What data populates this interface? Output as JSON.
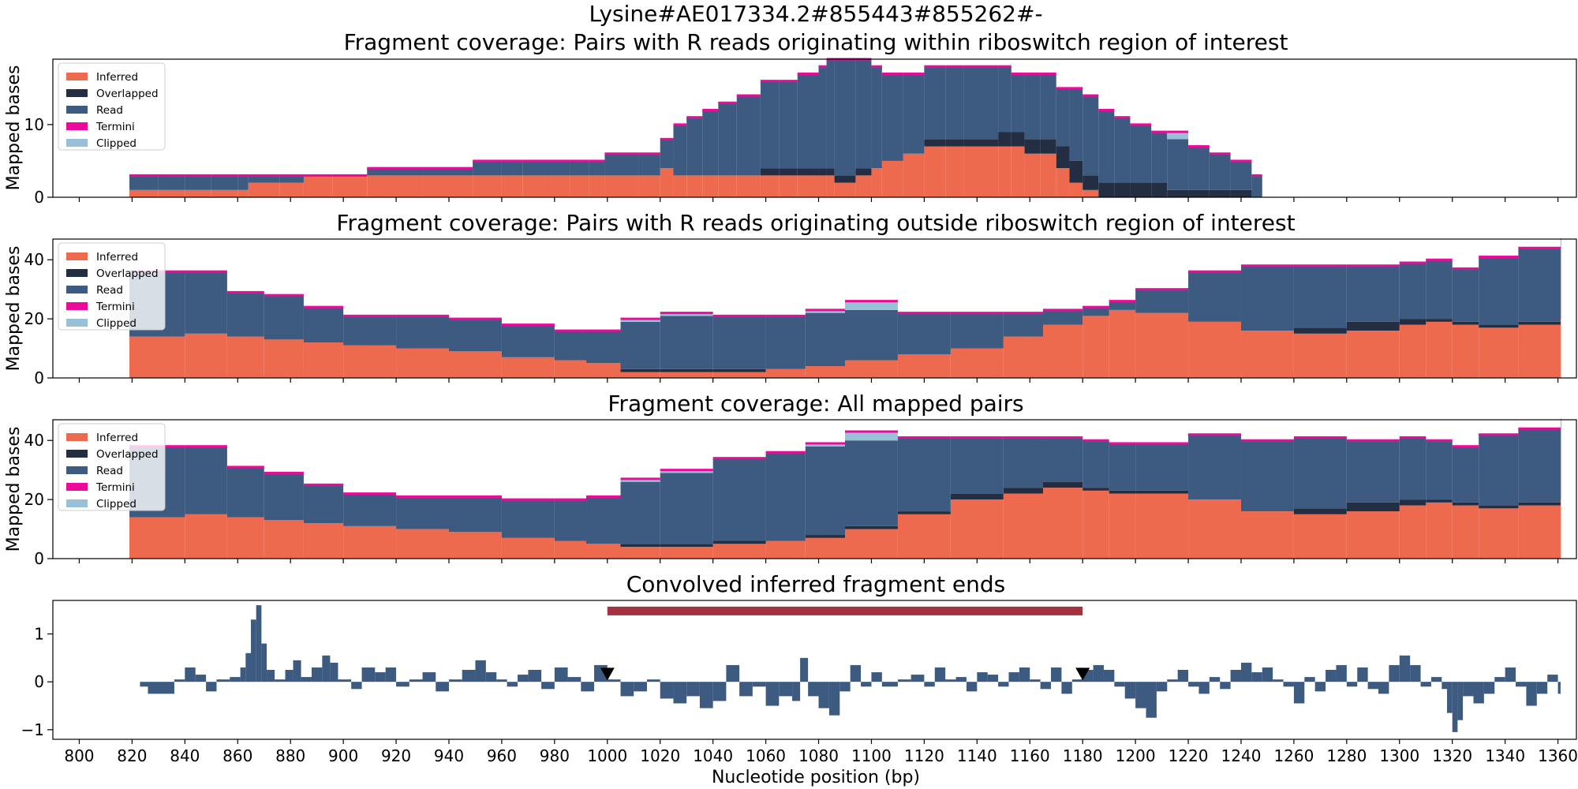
{
  "figure": {
    "suptitle": "Lysine#AE017334.2#855443#855262#-"
  },
  "colors": {
    "inferred": "#ee6a4e",
    "overlapped": "#242e42",
    "read": "#3d5a80",
    "termini": "#ec0a9b",
    "clipped": "#98c1d9",
    "roi_bar": "#a5303e",
    "conv_bar": "#3d5a80"
  },
  "legend": [
    "Inferred",
    "Overlapped",
    "Read",
    "Termini",
    "Clipped"
  ],
  "chart_data": [
    {
      "type": "area",
      "title": "Fragment coverage: Pairs with R reads originating within riboswitch region of interest",
      "ylabel": "Mapped bases",
      "ylim": [
        0,
        19
      ],
      "yticks": [
        0,
        10
      ],
      "xlim": [
        790,
        1367
      ],
      "legend_position": "top-left",
      "x": [
        819,
        830,
        840,
        850,
        860,
        864,
        876,
        885,
        896,
        909,
        930,
        949,
        960,
        968,
        976,
        986,
        993,
        999,
        1005,
        1012,
        1020,
        1025,
        1030,
        1036,
        1042,
        1049,
        1058,
        1065,
        1072,
        1080,
        1083,
        1086,
        1090,
        1094,
        1100,
        1104,
        1112,
        1120,
        1128,
        1135,
        1142,
        1148,
        1153,
        1158,
        1164,
        1170,
        1175,
        1180,
        1186,
        1192,
        1198,
        1206,
        1212,
        1220,
        1228,
        1236,
        1244,
        1248
      ],
      "series": [
        {
          "name": "Inferred",
          "values": [
            1,
            1,
            1,
            1,
            1,
            2,
            2,
            3,
            3,
            3,
            3,
            3,
            3,
            3,
            3,
            3,
            3,
            3,
            3,
            3,
            4,
            3,
            3,
            3,
            3,
            3,
            3,
            3,
            3,
            3,
            3,
            2,
            2,
            3,
            4,
            5,
            6,
            7,
            7,
            7,
            7,
            7,
            7,
            6,
            6,
            4,
            2,
            1,
            0,
            0,
            0,
            0,
            0,
            0,
            0,
            0,
            0,
            0
          ]
        },
        {
          "name": "Overlapped",
          "values": [
            0,
            0,
            0,
            0,
            0,
            0,
            0,
            0,
            0,
            0,
            0,
            0,
            0,
            0,
            0,
            0,
            0,
            0,
            0,
            0,
            0,
            0,
            0,
            0,
            0,
            0,
            1,
            1,
            1,
            1,
            1,
            1,
            1,
            1,
            0,
            0,
            0,
            1,
            1,
            1,
            1,
            2,
            2,
            2,
            2,
            3,
            3,
            2,
            2,
            2,
            2,
            2,
            1,
            1,
            1,
            1,
            0,
            0
          ]
        },
        {
          "name": "Read",
          "values": [
            2,
            2,
            2,
            2,
            2,
            1,
            1,
            0,
            0,
            1,
            1,
            2,
            2,
            2,
            2,
            2,
            2,
            3,
            3,
            3,
            4,
            7,
            8,
            9,
            10,
            11,
            12,
            12,
            13,
            14,
            15,
            16,
            16,
            15,
            14,
            12,
            11,
            10,
            10,
            10,
            10,
            9,
            8,
            9,
            9,
            8,
            10,
            11,
            10,
            9,
            8,
            7,
            7,
            6,
            5,
            4,
            3,
            0
          ]
        },
        {
          "name": "Termini",
          "values": [
            0,
            0,
            0,
            0,
            0,
            0,
            0,
            0,
            0,
            0,
            0,
            0,
            0,
            0,
            0,
            0,
            0,
            0,
            0,
            0,
            0,
            0,
            0,
            0,
            0,
            0,
            0,
            0,
            0,
            0,
            0,
            0,
            0,
            0,
            0,
            0,
            0,
            0,
            0,
            0,
            0,
            0,
            0,
            0,
            0,
            0,
            0,
            0,
            0,
            0,
            0,
            0,
            0,
            0,
            0,
            0,
            0,
            0
          ]
        },
        {
          "name": "Clipped",
          "values": [
            0,
            0,
            0,
            0,
            0,
            0,
            0,
            0,
            0,
            0,
            0,
            0,
            0,
            0,
            0,
            0,
            0,
            0,
            0,
            0,
            0,
            0,
            0,
            0,
            0,
            0,
            0,
            0,
            0,
            0,
            0,
            0,
            0,
            0,
            0,
            0,
            0,
            0,
            0,
            0,
            0,
            0,
            0,
            0,
            0,
            0,
            0,
            0,
            0,
            0,
            0,
            0,
            1,
            0,
            0,
            0,
            0,
            0
          ]
        }
      ]
    },
    {
      "type": "area",
      "title": "Fragment coverage: Pairs with R reads originating outside riboswitch region of interest",
      "ylabel": "Mapped bases",
      "ylim": [
        0,
        47
      ],
      "yticks": [
        0,
        20,
        40
      ],
      "xlim": [
        790,
        1367
      ],
      "legend_position": "top-left",
      "x": [
        819,
        840,
        856,
        870,
        885,
        900,
        920,
        940,
        960,
        980,
        992,
        1005,
        1020,
        1040,
        1060,
        1075,
        1090,
        1110,
        1130,
        1150,
        1165,
        1180,
        1190,
        1200,
        1220,
        1240,
        1260,
        1280,
        1300,
        1310,
        1320,
        1330,
        1345,
        1361
      ],
      "series": [
        {
          "name": "Inferred",
          "values": [
            14,
            15,
            14,
            13,
            12,
            11,
            10,
            9,
            7,
            6,
            5,
            2,
            2,
            2,
            3,
            4,
            6,
            8,
            10,
            14,
            18,
            21,
            23,
            22,
            19,
            16,
            15,
            16,
            18,
            19,
            18,
            17,
            18,
            20
          ]
        },
        {
          "name": "Overlapped",
          "values": [
            0,
            0,
            0,
            0,
            0,
            0,
            0,
            0,
            0,
            0,
            0,
            1,
            1,
            1,
            0,
            0,
            0,
            0,
            0,
            0,
            0,
            0,
            0,
            0,
            0,
            0,
            2,
            3,
            2,
            1,
            1,
            1,
            1,
            0
          ]
        },
        {
          "name": "Read",
          "values": [
            22,
            21,
            15,
            15,
            12,
            10,
            11,
            11,
            11,
            10,
            11,
            16,
            18,
            18,
            18,
            18,
            17,
            14,
            12,
            8,
            5,
            3,
            3,
            8,
            17,
            22,
            21,
            19,
            19,
            20,
            18,
            23,
            25,
            27
          ]
        },
        {
          "name": "Termini",
          "values": [
            0,
            0,
            0,
            0,
            0,
            0,
            0,
            0,
            0,
            0,
            0,
            0,
            0,
            0,
            0,
            0,
            0,
            0,
            0,
            0,
            0,
            0,
            0,
            0,
            0,
            0,
            0,
            0,
            0,
            0,
            0,
            0,
            0,
            0
          ]
        },
        {
          "name": "Clipped",
          "values": [
            0,
            0,
            0,
            0,
            0,
            0,
            0,
            0,
            0,
            0,
            0,
            1,
            1,
            0,
            0,
            1,
            3,
            0,
            0,
            0,
            0,
            0,
            0,
            0,
            0,
            0,
            0,
            0,
            0,
            0,
            0,
            0,
            0,
            0
          ]
        }
      ]
    },
    {
      "type": "area",
      "title": "Fragment coverage: All mapped pairs",
      "ylabel": "Mapped bases",
      "ylim": [
        0,
        47
      ],
      "yticks": [
        0,
        20,
        40
      ],
      "xlim": [
        790,
        1367
      ],
      "legend_position": "top-left",
      "x": [
        819,
        840,
        856,
        870,
        885,
        900,
        920,
        940,
        960,
        980,
        992,
        1005,
        1020,
        1040,
        1060,
        1075,
        1090,
        1110,
        1130,
        1150,
        1165,
        1180,
        1190,
        1200,
        1220,
        1240,
        1260,
        1280,
        1300,
        1310,
        1320,
        1330,
        1345,
        1361
      ],
      "series": [
        {
          "name": "Inferred",
          "values": [
            14,
            15,
            14,
            13,
            12,
            11,
            10,
            9,
            7,
            6,
            5,
            4,
            4,
            5,
            6,
            7,
            10,
            15,
            20,
            22,
            24,
            23,
            22,
            22,
            20,
            16,
            15,
            16,
            18,
            19,
            18,
            17,
            18,
            20
          ]
        },
        {
          "name": "Overlapped",
          "values": [
            0,
            0,
            0,
            0,
            0,
            0,
            0,
            0,
            0,
            0,
            0,
            1,
            1,
            1,
            0,
            1,
            1,
            1,
            2,
            2,
            2,
            1,
            1,
            1,
            0,
            0,
            2,
            3,
            2,
            1,
            1,
            1,
            1,
            0
          ]
        },
        {
          "name": "Read",
          "values": [
            24,
            23,
            17,
            16,
            13,
            11,
            11,
            12,
            13,
            14,
            16,
            21,
            24,
            28,
            30,
            30,
            29,
            25,
            19,
            17,
            15,
            16,
            16,
            16,
            22,
            24,
            24,
            21,
            21,
            20,
            19,
            24,
            25,
            27
          ]
        },
        {
          "name": "Termini",
          "values": [
            0,
            0,
            0,
            0,
            0,
            0,
            0,
            0,
            0,
            0,
            0,
            0,
            0,
            0,
            0,
            0,
            0,
            0,
            0,
            0,
            0,
            0,
            0,
            0,
            0,
            0,
            0,
            0,
            0,
            0,
            0,
            0,
            0,
            0
          ]
        },
        {
          "name": "Clipped",
          "values": [
            0,
            0,
            0,
            0,
            0,
            0,
            0,
            0,
            0,
            0,
            0,
            1,
            1,
            0,
            0,
            1,
            3,
            0,
            0,
            0,
            0,
            0,
            0,
            0,
            0,
            0,
            0,
            0,
            0,
            0,
            0,
            0,
            0,
            0
          ]
        }
      ]
    },
    {
      "type": "bar",
      "title": "Convolved inferred fragment ends",
      "ylim": [
        -1.2,
        1.7
      ],
      "yticks": [
        -1,
        0,
        1
      ],
      "xlim": [
        790,
        1367
      ],
      "xlabel": "Nucleotide position (bp)",
      "xticks": [
        800,
        820,
        840,
        860,
        880,
        900,
        920,
        940,
        960,
        980,
        1000,
        1020,
        1040,
        1060,
        1080,
        1100,
        1120,
        1140,
        1160,
        1180,
        1200,
        1220,
        1240,
        1260,
        1280,
        1300,
        1320,
        1340,
        1360
      ],
      "region_of_interest": [
        1000,
        1180
      ],
      "markers_x": [
        1000,
        1180
      ],
      "x": [
        819,
        823,
        826,
        836,
        840,
        844,
        848,
        852,
        857,
        861,
        863,
        865,
        867,
        869,
        871,
        874,
        878,
        881,
        884,
        888,
        892,
        895,
        898,
        903,
        907,
        912,
        916,
        920,
        925,
        930,
        935,
        940,
        945,
        950,
        954,
        958,
        962,
        966,
        970,
        975,
        980,
        985,
        990,
        995,
        1000,
        1005,
        1010,
        1015,
        1020,
        1025,
        1030,
        1035,
        1040,
        1045,
        1050,
        1055,
        1060,
        1065,
        1070,
        1073,
        1076,
        1080,
        1084,
        1088,
        1092,
        1096,
        1100,
        1104,
        1110,
        1115,
        1120,
        1124,
        1128,
        1132,
        1136,
        1140,
        1144,
        1148,
        1152,
        1156,
        1160,
        1164,
        1168,
        1172,
        1176,
        1180,
        1184,
        1188,
        1192,
        1196,
        1200,
        1204,
        1208,
        1212,
        1216,
        1220,
        1224,
        1228,
        1232,
        1236,
        1240,
        1244,
        1248,
        1252,
        1256,
        1260,
        1264,
        1268,
        1272,
        1276,
        1280,
        1284,
        1288,
        1292,
        1296,
        1300,
        1304,
        1308,
        1312,
        1316,
        1318,
        1320,
        1322,
        1324,
        1328,
        1332,
        1336,
        1340,
        1344,
        1348,
        1352,
        1356,
        1360
      ],
      "values": [
        0,
        -0.1,
        -0.25,
        0.05,
        0.3,
        0.15,
        -0.2,
        0.05,
        0.1,
        0.3,
        0.6,
        1.3,
        1.6,
        0.8,
        0.25,
        0.05,
        0.25,
        0.45,
        0.1,
        0.3,
        0.55,
        0.4,
        0.05,
        -0.15,
        0.3,
        0.2,
        0.3,
        -0.1,
        0.05,
        0.2,
        -0.2,
        0.05,
        0.25,
        0.45,
        0.2,
        0.05,
        -0.1,
        0.15,
        0.25,
        -0.15,
        0.3,
        0.1,
        -0.2,
        0.35,
        0.05,
        -0.3,
        -0.2,
        0.05,
        -0.35,
        -0.45,
        -0.3,
        -0.55,
        -0.4,
        0.35,
        -0.3,
        -0.1,
        -0.5,
        -0.3,
        -0.4,
        0.5,
        -0.3,
        -0.55,
        -0.7,
        -0.2,
        0.35,
        -0.1,
        0.2,
        -0.1,
        0.05,
        0.15,
        -0.1,
        0.3,
        0.05,
        0.1,
        -0.2,
        0.2,
        0.15,
        -0.1,
        0.2,
        0.3,
        0.05,
        -0.15,
        0.3,
        -0.25,
        0.05,
        0.25,
        0.35,
        0.25,
        -0.1,
        -0.35,
        -0.55,
        -0.75,
        -0.2,
        0.05,
        0.25,
        -0.1,
        -0.25,
        0.1,
        -0.15,
        0.25,
        0.4,
        0.2,
        0.3,
        0.05,
        -0.1,
        -0.45,
        0.1,
        -0.2,
        0.25,
        0.35,
        -0.1,
        0.3,
        -0.15,
        -0.25,
        0.35,
        0.55,
        0.35,
        -0.1,
        0.1,
        -0.15,
        -0.65,
        -1.05,
        -0.8,
        -0.3,
        -0.45,
        -0.25,
        0.1,
        0.3,
        -0.1,
        -0.5,
        -0.25,
        0.15,
        -0.25
      ]
    }
  ]
}
